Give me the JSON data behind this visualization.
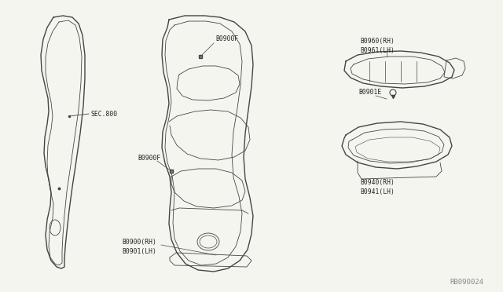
{
  "bg_color": "#f5f5f0",
  "line_color": "#444444",
  "text_color": "#222222",
  "fig_width": 6.4,
  "fig_height": 3.72,
  "labels": {
    "sec800": "SEC.800",
    "b0900f_top": "B0900F",
    "b0900f_bottom": "B0900F",
    "b0900_rh": "B0900(RH)",
    "b0901_lh": "B0901(LH)",
    "b0960_rh": "B0960(RH)",
    "b0961_lh": "B0961(LH)",
    "b0901e": "B0901E",
    "b0940_rh": "B0940(RH)",
    "b0941_lh": "B0941(LH)",
    "ref": "RB090024"
  },
  "label_fontsize": 5.8,
  "ref_fontsize": 6.5
}
